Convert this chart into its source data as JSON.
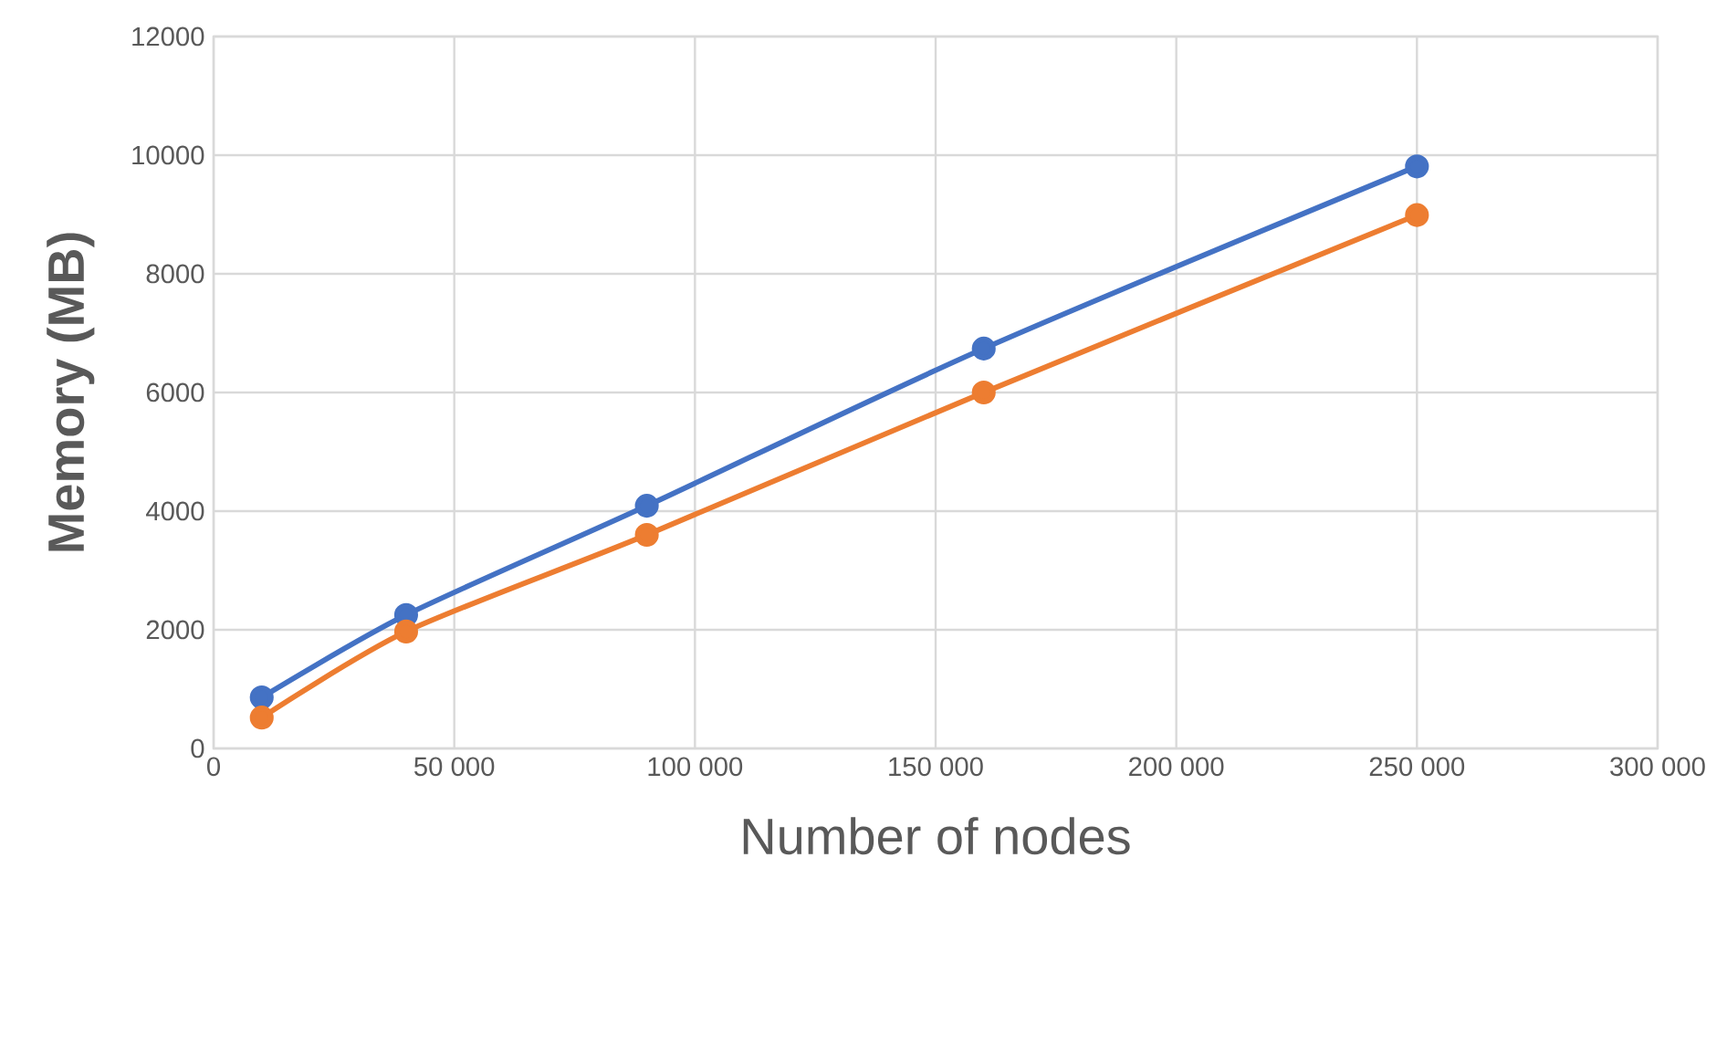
{
  "chart_data": {
    "type": "line",
    "xlabel": "Number of nodes",
    "ylabel": "Memory (MB)",
    "x": [
      10000,
      40000,
      90000,
      160000,
      250000
    ],
    "series": [
      {
        "color": "#4472c4",
        "values": [
          860,
          2250,
          4090,
          6740,
          9810
        ]
      },
      {
        "color": "#ed7d31",
        "values": [
          520,
          1970,
          3600,
          6000,
          8990
        ]
      }
    ],
    "xlim": [
      0,
      300000
    ],
    "xticks": [
      0,
      {
        "value": 50000,
        "label": "50 000"
      },
      {
        "value": 100000,
        "label": "100 000"
      },
      {
        "value": 150000,
        "label": "150 000"
      },
      {
        "value": 200000,
        "label": "200 000"
      },
      {
        "value": 250000,
        "label": "250 000"
      },
      {
        "value": 300000,
        "label": "300 000"
      }
    ],
    "ylim": [
      0,
      12000
    ],
    "yticks": [
      0,
      2000,
      4000,
      6000,
      8000,
      10000,
      12000
    ],
    "grid": true,
    "marker": "circle"
  }
}
